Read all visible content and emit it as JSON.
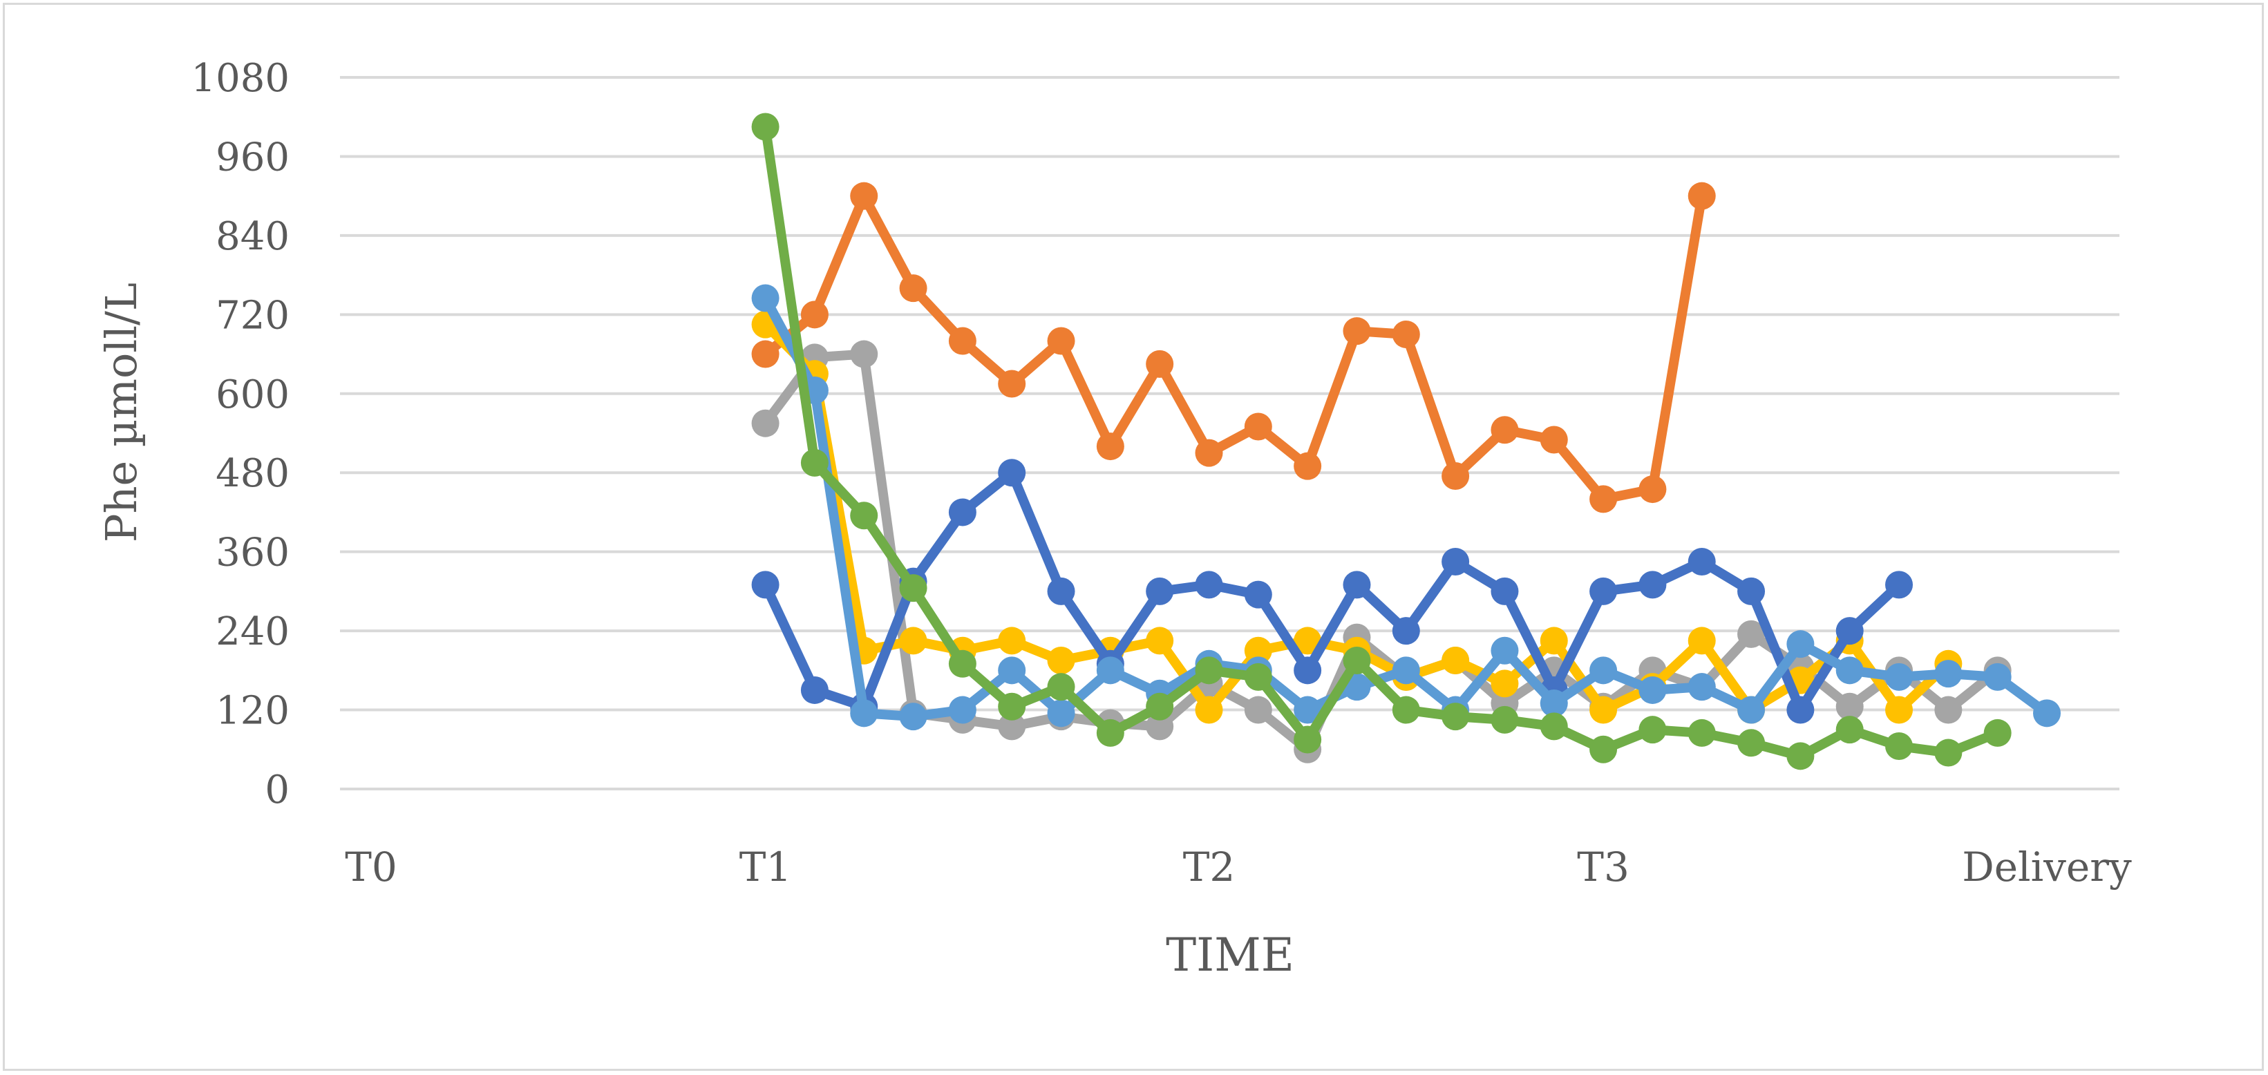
{
  "chart_data": {
    "type": "line",
    "xlabel": "TIME",
    "ylabel": "Phe µmoll/L",
    "ylim": [
      0,
      1080
    ],
    "yticks": [
      0,
      120,
      240,
      360,
      480,
      600,
      720,
      840,
      960,
      1080
    ],
    "xlim": [
      0,
      34
    ],
    "x_ticks": [
      {
        "label": "T0",
        "x": 0
      },
      {
        "label": "T1",
        "x": 8
      },
      {
        "label": "T2",
        "x": 17
      },
      {
        "label": "T3",
        "x": 25
      },
      {
        "label": "Delivery",
        "x": 34
      }
    ],
    "grid": "horizontal",
    "legend": "none",
    "series": [
      {
        "color": "#ED7D31",
        "x": [
          8,
          9,
          10,
          11,
          12,
          13,
          14,
          15,
          16,
          17,
          18,
          19,
          20,
          21,
          22,
          23,
          24,
          25,
          26,
          27
        ],
        "values": [
          660,
          720,
          900,
          760,
          680,
          615,
          680,
          520,
          645,
          510,
          550,
          490,
          695,
          690,
          475,
          545,
          530,
          440,
          455,
          900
        ]
      },
      {
        "color": "#A5A5A5",
        "x": [
          8,
          9,
          10,
          11,
          12,
          13,
          14,
          15,
          16,
          17,
          18,
          19,
          20,
          21,
          22,
          23,
          24,
          25,
          26,
          27,
          28,
          29,
          30,
          31,
          32,
          33
        ],
        "values": [
          555,
          655,
          660,
          115,
          105,
          95,
          110,
          100,
          95,
          160,
          120,
          60,
          230,
          170,
          195,
          130,
          180,
          125,
          180,
          155,
          235,
          185,
          125,
          180,
          120,
          180
        ]
      },
      {
        "color": "#FFC000",
        "x": [
          8,
          9,
          10,
          11,
          12,
          13,
          14,
          15,
          16,
          17,
          18,
          19,
          20,
          21,
          22,
          23,
          24,
          25,
          26,
          27,
          28,
          29,
          30,
          31,
          32
        ],
        "values": [
          705,
          630,
          210,
          225,
          210,
          225,
          195,
          210,
          225,
          120,
          210,
          225,
          210,
          170,
          195,
          160,
          225,
          120,
          155,
          225,
          120,
          165,
          225,
          120,
          190
        ]
      },
      {
        "color": "#4472C4",
        "x": [
          8,
          9,
          10,
          11,
          12,
          13,
          14,
          15,
          16,
          17,
          18,
          19,
          20,
          21,
          22,
          23,
          24,
          25,
          26,
          27,
          28,
          29,
          30,
          31
        ],
        "values": [
          310,
          150,
          125,
          315,
          420,
          480,
          300,
          190,
          300,
          310,
          295,
          180,
          310,
          240,
          345,
          300,
          150,
          300,
          310,
          345,
          300,
          120,
          240,
          310
        ]
      },
      {
        "color": "#5B9BD5",
        "x": [
          8,
          9,
          10,
          11,
          12,
          13,
          14,
          15,
          16,
          17,
          18,
          19,
          20,
          21,
          22,
          23,
          24,
          25,
          26,
          27,
          28,
          29,
          30,
          31,
          32,
          33,
          34
        ],
        "values": [
          745,
          605,
          115,
          110,
          120,
          180,
          115,
          180,
          145,
          190,
          180,
          120,
          155,
          180,
          120,
          210,
          130,
          180,
          150,
          155,
          120,
          220,
          180,
          170,
          175,
          170,
          115
        ]
      },
      {
        "color": "#70AD47",
        "x": [
          8,
          9,
          10,
          11,
          12,
          13,
          14,
          15,
          16,
          17,
          18,
          19,
          20,
          21,
          22,
          23,
          24,
          25,
          26,
          27,
          28,
          29,
          30,
          31,
          32,
          33
        ],
        "values": [
          1005,
          495,
          415,
          305,
          190,
          125,
          155,
          85,
          125,
          180,
          170,
          75,
          195,
          120,
          110,
          105,
          95,
          60,
          90,
          85,
          70,
          50,
          90,
          65,
          55,
          85
        ]
      }
    ]
  }
}
